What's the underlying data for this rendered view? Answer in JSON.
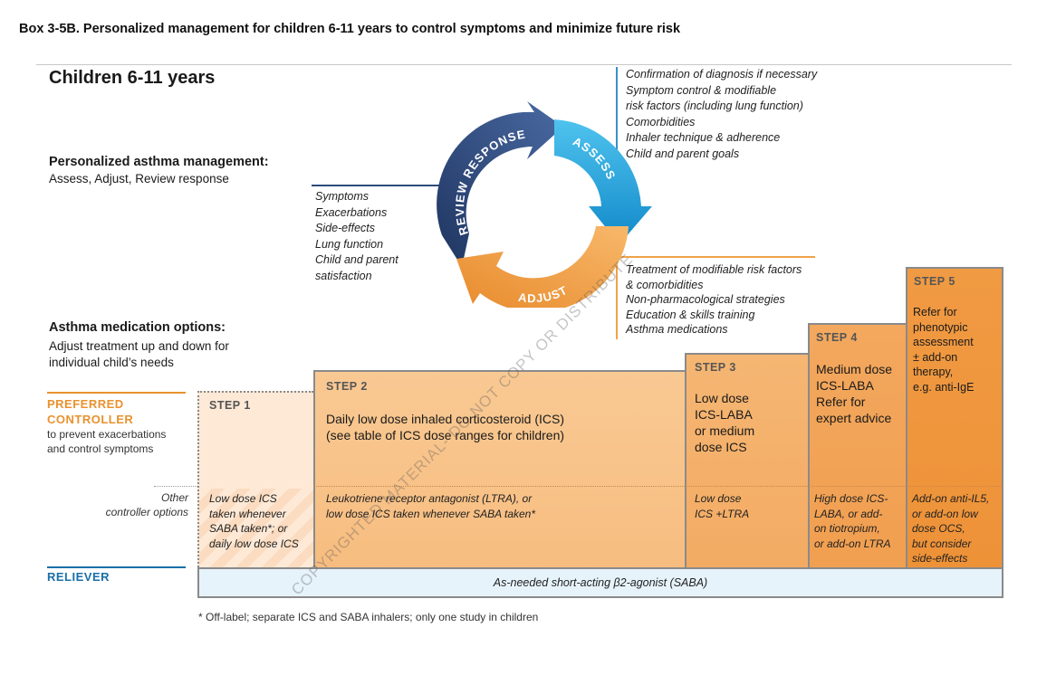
{
  "box_title": "Box 3-5B. Personalized management for children 6-11 years to control symptoms and minimize future risk",
  "main_title": "Children 6-11 years",
  "personalized": {
    "title": "Personalized asthma management:",
    "subtitle": "Assess, Adjust, Review response"
  },
  "medication_options": {
    "title": "Asthma medication options:",
    "subtitle": "Adjust treatment up and down for\nindividual child’s needs"
  },
  "cycle": {
    "review_label": "REVIEW RESPONSE",
    "assess_label": "ASSESS",
    "adjust_label": "ADJUST",
    "colors": {
      "review": "#2e4a7a",
      "assess": "#1fa3dc",
      "adjust": "#f0a24a"
    }
  },
  "assess_items": [
    "Confirmation of diagnosis if necessary",
    "Symptom control & modifiable\nrisk factors (including lung function)",
    "Comorbidities",
    "Inhaler technique & adherence",
    "Child and parent goals"
  ],
  "review_items": [
    "Symptoms",
    "Exacerbations",
    "Side-effects",
    "Lung function",
    "Child and parent\nsatisfaction"
  ],
  "adjust_items": [
    "Treatment of modifiable risk factors\n& comorbidities",
    "Non-pharmacological strategies",
    "Education & skills training",
    "Asthma medications"
  ],
  "row_labels": {
    "preferred_title": "PREFERRED\nCONTROLLER",
    "preferred_sub": "to prevent exacerbations\nand control symptoms",
    "other": "Other\ncontroller options",
    "reliever": "RELIEVER"
  },
  "steps": [
    {
      "label": "STEP 1",
      "preferred": "",
      "other": "Low dose ICS\ntaken whenever\nSABA taken*; or\ndaily low dose ICS"
    },
    {
      "label": "STEP 2",
      "preferred": "Daily low dose inhaled corticosteroid (ICS)\n(see table of ICS dose ranges for children)",
      "other": "Leukotriene receptor antagonist (LTRA), or\nlow dose ICS taken whenever SABA taken*"
    },
    {
      "label": "STEP 3",
      "preferred": "Low dose\nICS-LABA\nor medium\ndose ICS",
      "other": "Low dose\nICS +LTRA"
    },
    {
      "label": "STEP 4",
      "preferred": "Medium dose\nICS-LABA\nRefer for\nexpert advice",
      "other": "High dose ICS-\nLABA, or add-\non tiotropium,\nor add-on LTRA"
    },
    {
      "label": "STEP 5",
      "preferred": "Refer for\nphenotypic\nassessment\n± add-on\ntherapy,\ne.g. anti-IgE",
      "other": "Add-on anti-IL5,\nor add-on low\ndose OCS,\nbut consider\nside-effects"
    }
  ],
  "reliever_text": "As-needed short-acting β2-agonist (SABA)",
  "footnote": "* Off-label; separate ICS and SABA inhalers; only one study in children",
  "watermark": "COPYRIGHTED MATERIAL- DO NOT COPY OR DISTRIBUTE",
  "step_colors": [
    "#fde9d6",
    "#f9c993",
    "#f5b673",
    "#f3a85e",
    "#f09a43"
  ]
}
